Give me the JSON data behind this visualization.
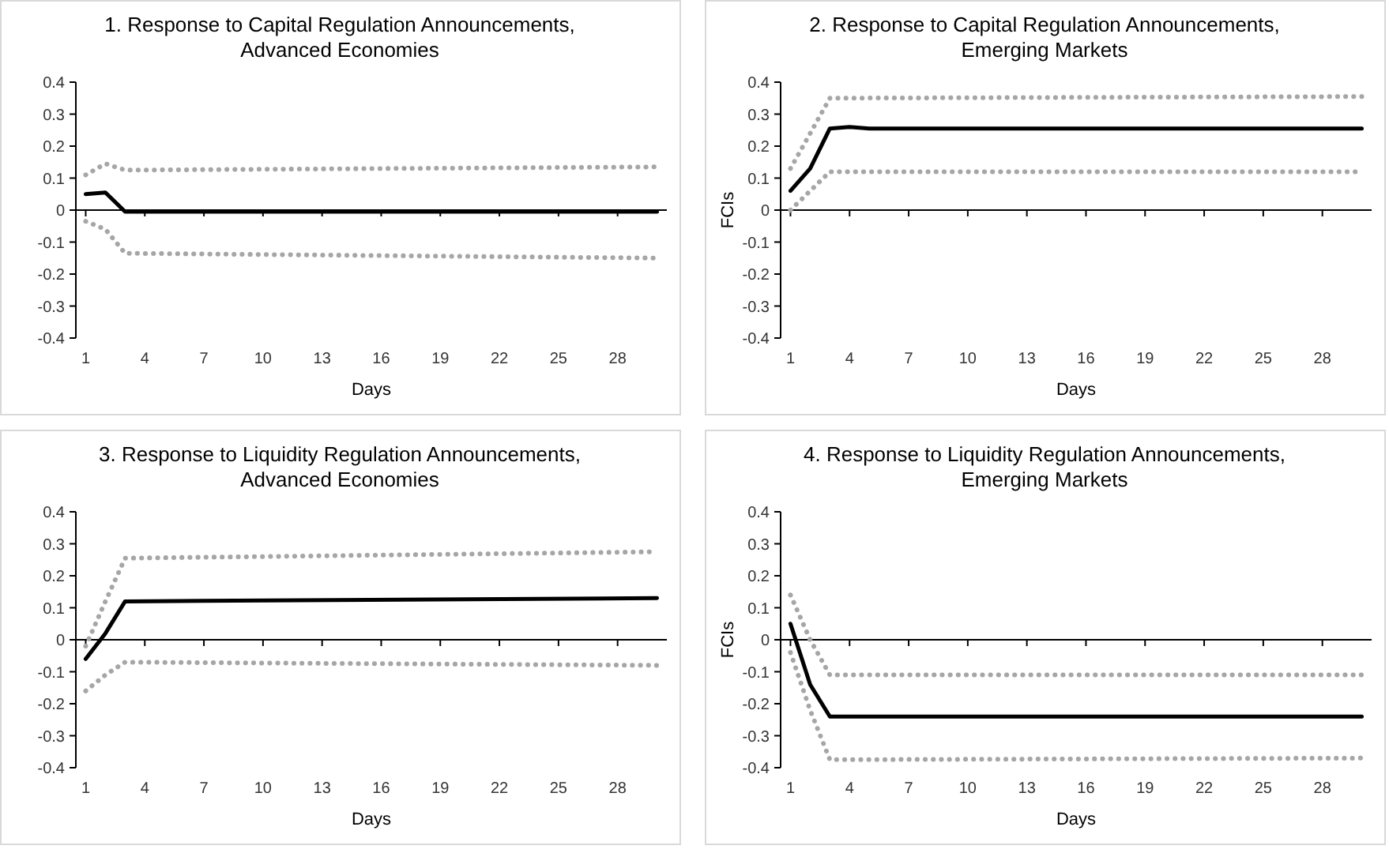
{
  "chart_data": [
    {
      "type": "line",
      "title": "1. Response to Capital Regulation Announcements,\nAdvanced Economies",
      "xlabel": "Days",
      "xlim": [
        0.5,
        30.5
      ],
      "xticks": [
        1,
        4,
        7,
        10,
        13,
        16,
        19,
        22,
        25,
        28
      ],
      "ylim": [
        -0.4,
        0.4
      ],
      "yticks": [
        -0.4,
        -0.3,
        -0.2,
        -0.1,
        0,
        0.1,
        0.2,
        0.3,
        0.4
      ],
      "marker": "none",
      "series": [
        {
          "color": "#000000",
          "line_style": "solid",
          "x": [
            1,
            2,
            3,
            30
          ],
          "values": [
            0.05,
            0.055,
            -0.005,
            -0.005
          ]
        },
        {
          "color": "#a6a6a6",
          "line_style": "dotted",
          "x": [
            1,
            2,
            3,
            30
          ],
          "values": [
            0.11,
            0.145,
            0.125,
            0.135
          ]
        },
        {
          "color": "#a6a6a6",
          "line_style": "dotted",
          "x": [
            1,
            2,
            3,
            30
          ],
          "values": [
            -0.035,
            -0.06,
            -0.135,
            -0.15
          ]
        }
      ]
    },
    {
      "type": "line",
      "title": "2. Response to Capital Regulation Announcements,\nEmerging Markets",
      "xlabel": "Days",
      "ylabel": "FCIs",
      "xlim": [
        0.5,
        30.5
      ],
      "xticks": [
        1,
        4,
        7,
        10,
        13,
        16,
        19,
        22,
        25,
        28
      ],
      "ylim": [
        -0.4,
        0.4
      ],
      "yticks": [
        -0.4,
        -0.3,
        -0.2,
        -0.1,
        0,
        0.1,
        0.2,
        0.3,
        0.4
      ],
      "marker": "none",
      "series": [
        {
          "color": "#000000",
          "line_style": "solid",
          "x": [
            1,
            2,
            3,
            4,
            5,
            30
          ],
          "values": [
            0.06,
            0.13,
            0.255,
            0.26,
            0.255,
            0.255
          ]
        },
        {
          "color": "#a6a6a6",
          "line_style": "dotted",
          "x": [
            1,
            2,
            3,
            30
          ],
          "values": [
            0.13,
            0.24,
            0.35,
            0.355
          ]
        },
        {
          "color": "#a6a6a6",
          "line_style": "dotted",
          "x": [
            1,
            2,
            3,
            30
          ],
          "values": [
            0.0,
            0.06,
            0.12,
            0.12
          ]
        }
      ]
    },
    {
      "type": "line",
      "title": "3. Response to Liquidity Regulation Announcements,\nAdvanced Economies",
      "xlabel": "Days",
      "xlim": [
        0.5,
        30.5
      ],
      "xticks": [
        1,
        4,
        7,
        10,
        13,
        16,
        19,
        22,
        25,
        28
      ],
      "ylim": [
        -0.4,
        0.4
      ],
      "yticks": [
        -0.4,
        -0.3,
        -0.2,
        -0.1,
        0,
        0.1,
        0.2,
        0.3,
        0.4
      ],
      "marker": "none",
      "series": [
        {
          "color": "#000000",
          "line_style": "solid",
          "x": [
            1,
            2,
            3,
            30
          ],
          "values": [
            -0.06,
            0.02,
            0.12,
            0.13
          ]
        },
        {
          "color": "#a6a6a6",
          "line_style": "dotted",
          "x": [
            1,
            2,
            3,
            30
          ],
          "values": [
            -0.02,
            0.12,
            0.255,
            0.275
          ]
        },
        {
          "color": "#a6a6a6",
          "line_style": "dotted",
          "x": [
            1,
            2,
            3,
            30
          ],
          "values": [
            -0.16,
            -0.11,
            -0.07,
            -0.08
          ]
        }
      ]
    },
    {
      "type": "line",
      "title": "4. Response to Liquidity Regulation Announcements,\nEmerging Markets",
      "xlabel": "Days",
      "ylabel": "FCIs",
      "xlim": [
        0.5,
        30.5
      ],
      "xticks": [
        1,
        4,
        7,
        10,
        13,
        16,
        19,
        22,
        25,
        28
      ],
      "ylim": [
        -0.4,
        0.4
      ],
      "yticks": [
        -0.4,
        -0.3,
        -0.2,
        -0.1,
        0,
        0.1,
        0.2,
        0.3,
        0.4
      ],
      "marker": "none",
      "series": [
        {
          "color": "#000000",
          "line_style": "solid",
          "x": [
            1,
            2,
            3,
            30
          ],
          "values": [
            0.05,
            -0.14,
            -0.24,
            -0.24
          ]
        },
        {
          "color": "#a6a6a6",
          "line_style": "dotted",
          "x": [
            1,
            2,
            3,
            30
          ],
          "values": [
            0.14,
            0.0,
            -0.11,
            -0.11
          ]
        },
        {
          "color": "#a6a6a6",
          "line_style": "dotted",
          "x": [
            1,
            2,
            3,
            30
          ],
          "values": [
            -0.04,
            -0.22,
            -0.375,
            -0.37
          ]
        }
      ]
    }
  ]
}
